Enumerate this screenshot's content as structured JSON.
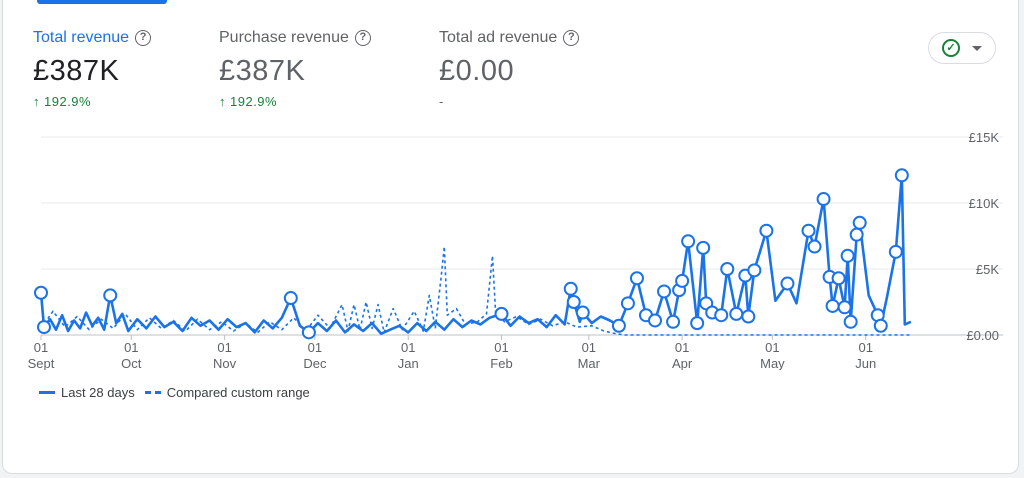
{
  "metrics": [
    {
      "label": "Total revenue",
      "value": "£387K",
      "change": "192.9%",
      "active": true
    },
    {
      "label": "Purchase revenue",
      "value": "£387K",
      "change": "192.9%",
      "active": false
    },
    {
      "label": "Total ad revenue",
      "value": "£0.00",
      "change": "-",
      "active": false
    }
  ],
  "legend": {
    "current": "Last 28 days",
    "compare": "Compared custom range"
  },
  "colors": {
    "accent": "#1a73e8",
    "positive": "#188038",
    "grid": "#e8eaed"
  },
  "icons": {
    "help": "help-circle-icon",
    "trend": "arrow-up-icon",
    "status": "check-circle-icon",
    "menu": "caret-down-icon"
  },
  "chart_data": {
    "type": "line",
    "x_range": [
      "2023-09-01",
      "2024-06-30"
    ],
    "x_ticks": [
      {
        "date": "2023-09-01",
        "day": "01",
        "month": "Sept"
      },
      {
        "date": "2023-10-01",
        "day": "01",
        "month": "Oct"
      },
      {
        "date": "2023-11-01",
        "day": "01",
        "month": "Nov"
      },
      {
        "date": "2023-12-01",
        "day": "01",
        "month": "Dec"
      },
      {
        "date": "2024-01-01",
        "day": "01",
        "month": "Jan"
      },
      {
        "date": "2024-02-01",
        "day": "01",
        "month": "Feb"
      },
      {
        "date": "2024-03-01",
        "day": "01",
        "month": "Mar"
      },
      {
        "date": "2024-04-01",
        "day": "01",
        "month": "Apr"
      },
      {
        "date": "2024-05-01",
        "day": "01",
        "month": "May"
      },
      {
        "date": "2024-06-01",
        "day": "01",
        "month": "Jun"
      }
    ],
    "y_ticks": [
      {
        "value": 0,
        "label": "£0.00"
      },
      {
        "value": 5000,
        "label": "£5K"
      },
      {
        "value": 10000,
        "label": "£10K"
      },
      {
        "value": 15000,
        "label": "£15K"
      }
    ],
    "ylim": [
      0,
      15000
    ],
    "series": [
      {
        "name": "Last 28 days",
        "style": "solid",
        "points": [
          [
            "2023-09-01",
            3200
          ],
          [
            "2023-09-02",
            600
          ],
          [
            "2023-09-04",
            1200
          ],
          [
            "2023-09-06",
            400
          ],
          [
            "2023-09-08",
            1500
          ],
          [
            "2023-09-10",
            300
          ],
          [
            "2023-09-12",
            1100
          ],
          [
            "2023-09-14",
            500
          ],
          [
            "2023-09-16",
            1700
          ],
          [
            "2023-09-18",
            700
          ],
          [
            "2023-09-20",
            1300
          ],
          [
            "2023-09-22",
            400
          ],
          [
            "2023-09-24",
            3000
          ],
          [
            "2023-09-26",
            900
          ],
          [
            "2023-09-28",
            1600
          ],
          [
            "2023-09-30",
            300
          ],
          [
            "2023-10-03",
            1200
          ],
          [
            "2023-10-06",
            500
          ],
          [
            "2023-10-09",
            1400
          ],
          [
            "2023-10-12",
            600
          ],
          [
            "2023-10-15",
            1000
          ],
          [
            "2023-10-18",
            300
          ],
          [
            "2023-10-21",
            1300
          ],
          [
            "2023-10-24",
            700
          ],
          [
            "2023-10-27",
            1100
          ],
          [
            "2023-10-30",
            400
          ],
          [
            "2023-11-02",
            1200
          ],
          [
            "2023-11-05",
            600
          ],
          [
            "2023-11-08",
            900
          ],
          [
            "2023-11-11",
            200
          ],
          [
            "2023-11-14",
            1100
          ],
          [
            "2023-11-17",
            500
          ],
          [
            "2023-11-20",
            1300
          ],
          [
            "2023-11-23",
            2800
          ],
          [
            "2023-11-26",
            700
          ],
          [
            "2023-11-29",
            200
          ],
          [
            "2023-12-02",
            900
          ],
          [
            "2023-12-05",
            300
          ],
          [
            "2023-12-08",
            1100
          ],
          [
            "2023-12-11",
            200
          ],
          [
            "2023-12-14",
            800
          ],
          [
            "2023-12-17",
            300
          ],
          [
            "2023-12-20",
            900
          ],
          [
            "2023-12-23",
            100
          ],
          [
            "2023-12-26",
            400
          ],
          [
            "2023-12-29",
            700
          ],
          [
            "2024-01-01",
            200
          ],
          [
            "2024-01-04",
            900
          ],
          [
            "2024-01-07",
            300
          ],
          [
            "2024-01-10",
            1000
          ],
          [
            "2024-01-13",
            400
          ],
          [
            "2024-01-16",
            1200
          ],
          [
            "2024-01-19",
            600
          ],
          [
            "2024-01-22",
            1100
          ],
          [
            "2024-01-25",
            800
          ],
          [
            "2024-01-28",
            1300
          ],
          [
            "2024-02-01",
            1600
          ],
          [
            "2024-02-04",
            700
          ],
          [
            "2024-02-07",
            1400
          ],
          [
            "2024-02-10",
            900
          ],
          [
            "2024-02-13",
            1200
          ],
          [
            "2024-02-16",
            600
          ],
          [
            "2024-02-19",
            1500
          ],
          [
            "2024-02-22",
            800
          ],
          [
            "2024-02-24",
            3500
          ],
          [
            "2024-02-25",
            2500
          ],
          [
            "2024-02-27",
            1000
          ],
          [
            "2024-02-28",
            1700
          ],
          [
            "2024-03-02",
            900
          ],
          [
            "2024-03-05",
            1400
          ],
          [
            "2024-03-08",
            1100
          ],
          [
            "2024-03-11",
            700
          ],
          [
            "2024-03-14",
            2400
          ],
          [
            "2024-03-17",
            4300
          ],
          [
            "2024-03-20",
            1500
          ],
          [
            "2024-03-23",
            1100
          ],
          [
            "2024-03-26",
            3300
          ],
          [
            "2024-03-29",
            1000
          ],
          [
            "2024-03-31",
            3400
          ],
          [
            "2024-04-01",
            4100
          ],
          [
            "2024-04-03",
            7100
          ],
          [
            "2024-04-06",
            900
          ],
          [
            "2024-04-08",
            6600
          ],
          [
            "2024-04-09",
            2400
          ],
          [
            "2024-04-11",
            1700
          ],
          [
            "2024-04-14",
            1500
          ],
          [
            "2024-04-16",
            5000
          ],
          [
            "2024-04-19",
            1600
          ],
          [
            "2024-04-22",
            4500
          ],
          [
            "2024-04-23",
            1400
          ],
          [
            "2024-04-25",
            4900
          ],
          [
            "2024-04-29",
            7900
          ],
          [
            "2024-05-02",
            2600
          ],
          [
            "2024-05-06",
            3900
          ],
          [
            "2024-05-09",
            2400
          ],
          [
            "2024-05-13",
            7900
          ],
          [
            "2024-05-15",
            6700
          ],
          [
            "2024-05-18",
            10300
          ],
          [
            "2024-05-20",
            4400
          ],
          [
            "2024-05-21",
            2200
          ],
          [
            "2024-05-23",
            4300
          ],
          [
            "2024-05-25",
            2100
          ],
          [
            "2024-05-26",
            6000
          ],
          [
            "2024-05-27",
            1000
          ],
          [
            "2024-05-29",
            7600
          ],
          [
            "2024-05-30",
            8500
          ],
          [
            "2024-06-02",
            3000
          ],
          [
            "2024-06-05",
            1500
          ],
          [
            "2024-06-06",
            700
          ],
          [
            "2024-06-08",
            2800
          ],
          [
            "2024-06-11",
            6300
          ],
          [
            "2024-06-13",
            12100
          ],
          [
            "2024-06-14",
            800
          ],
          [
            "2024-06-16",
            1000
          ]
        ],
        "highlight_dates": [
          "2023-09-01",
          "2023-09-02",
          "2023-09-24",
          "2023-11-23",
          "2023-11-29",
          "2024-02-01",
          "2024-02-24",
          "2024-02-25",
          "2024-02-28",
          "2024-03-11",
          "2024-03-14",
          "2024-03-17",
          "2024-03-20",
          "2024-03-23",
          "2024-03-26",
          "2024-03-29",
          "2024-03-31",
          "2024-04-01",
          "2024-04-03",
          "2024-04-06",
          "2024-04-08",
          "2024-04-09",
          "2024-04-11",
          "2024-04-14",
          "2024-04-16",
          "2024-04-19",
          "2024-04-22",
          "2024-04-23",
          "2024-04-25",
          "2024-04-29",
          "2024-05-06",
          "2024-05-13",
          "2024-05-15",
          "2024-05-18",
          "2024-05-20",
          "2024-05-21",
          "2024-05-23",
          "2024-05-25",
          "2024-05-26",
          "2024-05-27",
          "2024-05-29",
          "2024-05-30",
          "2024-06-05",
          "2024-06-06",
          "2024-06-11",
          "2024-06-13"
        ]
      },
      {
        "name": "Compared custom range",
        "style": "dashed",
        "points": [
          [
            "2023-09-01",
            500
          ],
          [
            "2023-09-05",
            1800
          ],
          [
            "2023-09-09",
            600
          ],
          [
            "2023-09-13",
            1400
          ],
          [
            "2023-09-17",
            400
          ],
          [
            "2023-09-21",
            1200
          ],
          [
            "2023-09-25",
            500
          ],
          [
            "2023-09-29",
            1600
          ],
          [
            "2023-10-03",
            400
          ],
          [
            "2023-10-07",
            1300
          ],
          [
            "2023-10-11",
            500
          ],
          [
            "2023-10-15",
            1100
          ],
          [
            "2023-10-19",
            300
          ],
          [
            "2023-10-23",
            1200
          ],
          [
            "2023-10-27",
            400
          ],
          [
            "2023-10-31",
            1000
          ],
          [
            "2023-11-04",
            300
          ],
          [
            "2023-11-08",
            900
          ],
          [
            "2023-11-12",
            200
          ],
          [
            "2023-11-16",
            1000
          ],
          [
            "2023-11-20",
            400
          ],
          [
            "2023-11-24",
            1300
          ],
          [
            "2023-11-28",
            300
          ],
          [
            "2023-12-02",
            1500
          ],
          [
            "2023-12-06",
            500
          ],
          [
            "2023-12-10",
            2300
          ],
          [
            "2023-12-12",
            300
          ],
          [
            "2023-12-14",
            2300
          ],
          [
            "2023-12-16",
            400
          ],
          [
            "2023-12-18",
            2500
          ],
          [
            "2023-12-20",
            500
          ],
          [
            "2023-12-22",
            2300
          ],
          [
            "2023-12-24",
            200
          ],
          [
            "2023-12-27",
            2000
          ],
          [
            "2023-12-30",
            400
          ],
          [
            "2024-01-03",
            1800
          ],
          [
            "2024-01-06",
            300
          ],
          [
            "2024-01-08",
            3000
          ],
          [
            "2024-01-10",
            500
          ],
          [
            "2024-01-12",
            4500
          ],
          [
            "2024-01-13",
            6700
          ],
          [
            "2024-01-14",
            1500
          ],
          [
            "2024-01-17",
            2000
          ],
          [
            "2024-01-20",
            800
          ],
          [
            "2024-01-24",
            1000
          ],
          [
            "2024-01-27",
            1600
          ],
          [
            "2024-01-29",
            6000
          ],
          [
            "2024-01-30",
            1800
          ],
          [
            "2024-02-02",
            1000
          ],
          [
            "2024-02-06",
            1400
          ],
          [
            "2024-02-10",
            800
          ],
          [
            "2024-02-14",
            1200
          ],
          [
            "2024-02-18",
            700
          ],
          [
            "2024-02-22",
            1000
          ],
          [
            "2024-02-26",
            600
          ],
          [
            "2024-03-02",
            700
          ],
          [
            "2024-03-06",
            300
          ],
          [
            "2024-03-10",
            100
          ],
          [
            "2024-03-13",
            0
          ],
          [
            "2024-06-16",
            0
          ]
        ]
      }
    ]
  }
}
